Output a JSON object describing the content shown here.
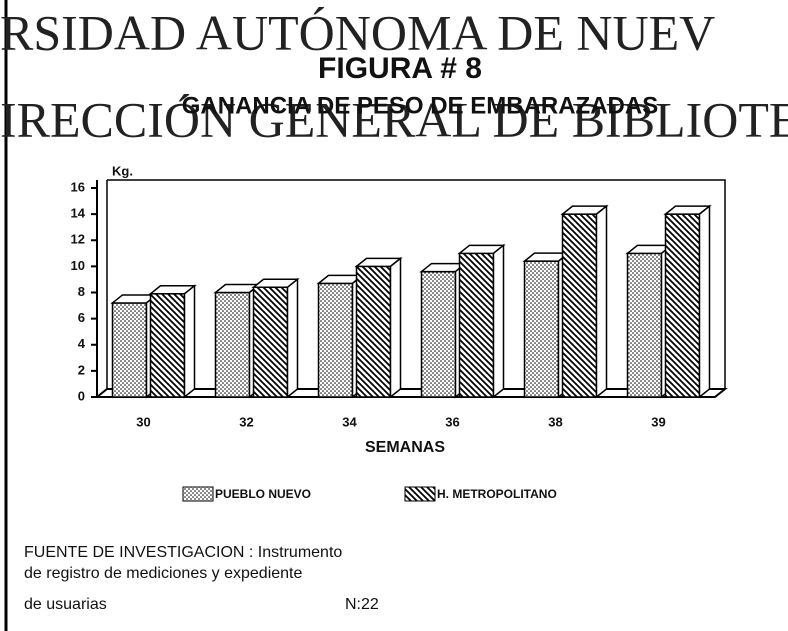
{
  "watermark": [
    "RSIDAD AUTÓNOMA DE NUEV",
    "IRECCIÓN GENERAL DE BIBLIOTEC"
  ],
  "chart_data": {
    "type": "bar3d",
    "title": "FIGURA # 8",
    "subtitle": "GANANCIA DE PESO  DE EMBARAZADAS",
    "y_label": "Kg.",
    "x_label": "SEMANAS",
    "categories": [
      "30",
      "32",
      "34",
      "36",
      "38",
      "39"
    ],
    "series": [
      {
        "name": "PUEBLO NUEVO",
        "color": "#000000",
        "pattern": "dots",
        "values": [
          7.2,
          8.0,
          8.7,
          9.6,
          10.4,
          11.0
        ]
      },
      {
        "name": "H. METROPOLITANO",
        "color": "#000000",
        "pattern": "hatch",
        "values": [
          7.9,
          8.4,
          10.0,
          11.0,
          14.0,
          14.0
        ]
      }
    ],
    "ylim": [
      0,
      16
    ],
    "yticks": [
      0,
      2,
      4,
      6,
      8,
      10,
      12,
      14,
      16
    ]
  },
  "source": {
    "lines": [
      "FUENTE DE INVESTIGACION : Instrumento",
      "de registro de mediciones y expediente",
      "de usuarias"
    ],
    "n": "N:22"
  }
}
